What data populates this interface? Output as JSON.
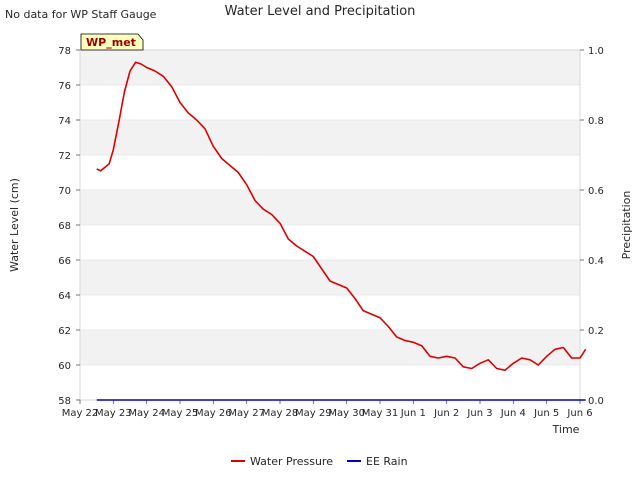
{
  "chart_data": {
    "type": "line",
    "title": "Water Level and Precipitation",
    "corner_note": "No data for WP Staff Gauge",
    "site_label": "WP_met",
    "xlabel": "Time",
    "ylabel": "Water Level (cm)",
    "y2label": "Precipitation",
    "x_ticks": [
      "May 22",
      "May 23",
      "May 24",
      "May 25",
      "May 26",
      "May 27",
      "May 28",
      "May 29",
      "May 30",
      "May 31",
      "Jun 1",
      "Jun 2",
      "Jun 3",
      "Jun 4",
      "Jun 5",
      "Jun 6"
    ],
    "y_ticks": [
      "58",
      "60",
      "62",
      "64",
      "66",
      "68",
      "70",
      "72",
      "74",
      "76",
      "78"
    ],
    "y2_ticks": [
      "0.0",
      "0.2",
      "0.4",
      "0.6",
      "0.8",
      "1.0"
    ],
    "ylim": [
      58,
      78
    ],
    "y2lim": [
      0,
      1
    ],
    "grid": "horizontal bands",
    "legend_position": "bottom-center",
    "series": [
      {
        "name": "Water Pressure",
        "color": "#dd0000",
        "axis": "left",
        "points": [
          [
            "May 22 12:00",
            71.2
          ],
          [
            "May 22 15:00",
            71.1
          ],
          [
            "May 22 18:00",
            71.3
          ],
          [
            "May 22 21:00",
            71.5
          ],
          [
            "May 23 00:00",
            72.3
          ],
          [
            "May 23 04:00",
            73.9
          ],
          [
            "May 23 08:00",
            75.6
          ],
          [
            "May 23 12:00",
            76.8
          ],
          [
            "May 23 16:00",
            77.3
          ],
          [
            "May 23 20:00",
            77.2
          ],
          [
            "May 24 00:00",
            77.0
          ],
          [
            "May 24 06:00",
            76.8
          ],
          [
            "May 24 12:00",
            76.5
          ],
          [
            "May 24 18:00",
            75.9
          ],
          [
            "May 25 00:00",
            75.0
          ],
          [
            "May 25 06:00",
            74.4
          ],
          [
            "May 25 12:00",
            74.0
          ],
          [
            "May 25 18:00",
            73.5
          ],
          [
            "May 26 00:00",
            72.5
          ],
          [
            "May 26 06:00",
            71.8
          ],
          [
            "May 26 12:00",
            71.4
          ],
          [
            "May 26 18:00",
            71.0
          ],
          [
            "May 27 00:00",
            70.3
          ],
          [
            "May 27 06:00",
            69.4
          ],
          [
            "May 27 12:00",
            68.9
          ],
          [
            "May 27 18:00",
            68.6
          ],
          [
            "May 28 00:00",
            68.1
          ],
          [
            "May 28 06:00",
            67.2
          ],
          [
            "May 28 12:00",
            66.8
          ],
          [
            "May 28 18:00",
            66.5
          ],
          [
            "May 29 00:00",
            66.2
          ],
          [
            "May 29 06:00",
            65.5
          ],
          [
            "May 29 12:00",
            64.8
          ],
          [
            "May 29 18:00",
            64.6
          ],
          [
            "May 30 00:00",
            64.4
          ],
          [
            "May 30 06:00",
            63.8
          ],
          [
            "May 30 12:00",
            63.1
          ],
          [
            "May 30 18:00",
            62.9
          ],
          [
            "May 31 00:00",
            62.7
          ],
          [
            "May 31 06:00",
            62.2
          ],
          [
            "May 31 12:00",
            61.6
          ],
          [
            "May 31 18:00",
            61.4
          ],
          [
            "Jun 1 00:00",
            61.3
          ],
          [
            "Jun 1 06:00",
            61.1
          ],
          [
            "Jun 1 12:00",
            60.5
          ],
          [
            "Jun 1 18:00",
            60.4
          ],
          [
            "Jun 2 00:00",
            60.5
          ],
          [
            "Jun 2 06:00",
            60.4
          ],
          [
            "Jun 2 12:00",
            59.9
          ],
          [
            "Jun 2 18:00",
            59.8
          ],
          [
            "Jun 3 00:00",
            60.1
          ],
          [
            "Jun 3 06:00",
            60.3
          ],
          [
            "Jun 3 12:00",
            59.8
          ],
          [
            "Jun 3 18:00",
            59.7
          ],
          [
            "Jun 4 00:00",
            60.1
          ],
          [
            "Jun 4 06:00",
            60.4
          ],
          [
            "Jun 4 12:00",
            60.3
          ],
          [
            "Jun 4 18:00",
            60.0
          ],
          [
            "Jun 5 00:00",
            60.5
          ],
          [
            "Jun 5 06:00",
            60.9
          ],
          [
            "Jun 5 12:00",
            61.0
          ],
          [
            "Jun 5 18:00",
            60.4
          ],
          [
            "Jun 6 00:00",
            60.4
          ],
          [
            "Jun 6 04:00",
            60.9
          ]
        ]
      },
      {
        "name": "EE Rain",
        "color": "#0000cc",
        "axis": "right",
        "points": [
          [
            "May 22 12:00",
            0.0
          ],
          [
            "Jun 6 04:00",
            0.0
          ]
        ]
      }
    ]
  }
}
